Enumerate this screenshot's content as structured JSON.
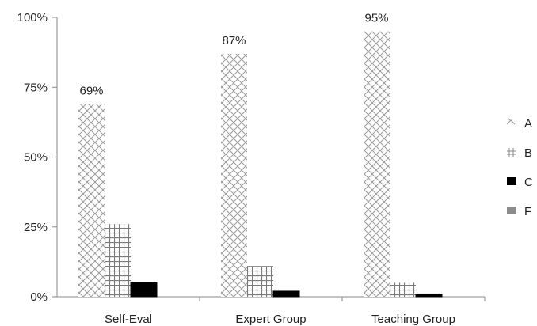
{
  "chart_data": {
    "type": "bar",
    "categories": [
      "Self-Eval",
      "Expert Group",
      "Teaching Group"
    ],
    "series": [
      {
        "name": "A",
        "values": [
          69,
          87,
          95
        ],
        "pattern": "crosshatch-diagonal",
        "color": "#9a9a9a"
      },
      {
        "name": "B",
        "values": [
          26,
          11,
          5
        ],
        "pattern": "grid",
        "color": "#8a8a8a"
      },
      {
        "name": "C",
        "values": [
          5,
          2,
          1
        ],
        "pattern": "solid",
        "color": "#000000"
      },
      {
        "name": "F",
        "values": [
          0,
          0,
          0
        ],
        "pattern": "solid",
        "color": "#8c8c8c"
      }
    ],
    "data_labels": [
      {
        "series": "A",
        "category": "Self-Eval",
        "text": "69%"
      },
      {
        "series": "A",
        "category": "Expert Group",
        "text": "87%"
      },
      {
        "series": "A",
        "category": "Teaching Group",
        "text": "95%"
      }
    ],
    "y_ticks": [
      "0%",
      "25%",
      "50%",
      "75%",
      "100%"
    ],
    "ylim": [
      0,
      100
    ],
    "title": "",
    "xlabel": "",
    "ylabel": "",
    "grid": false,
    "legend_position": "right"
  }
}
